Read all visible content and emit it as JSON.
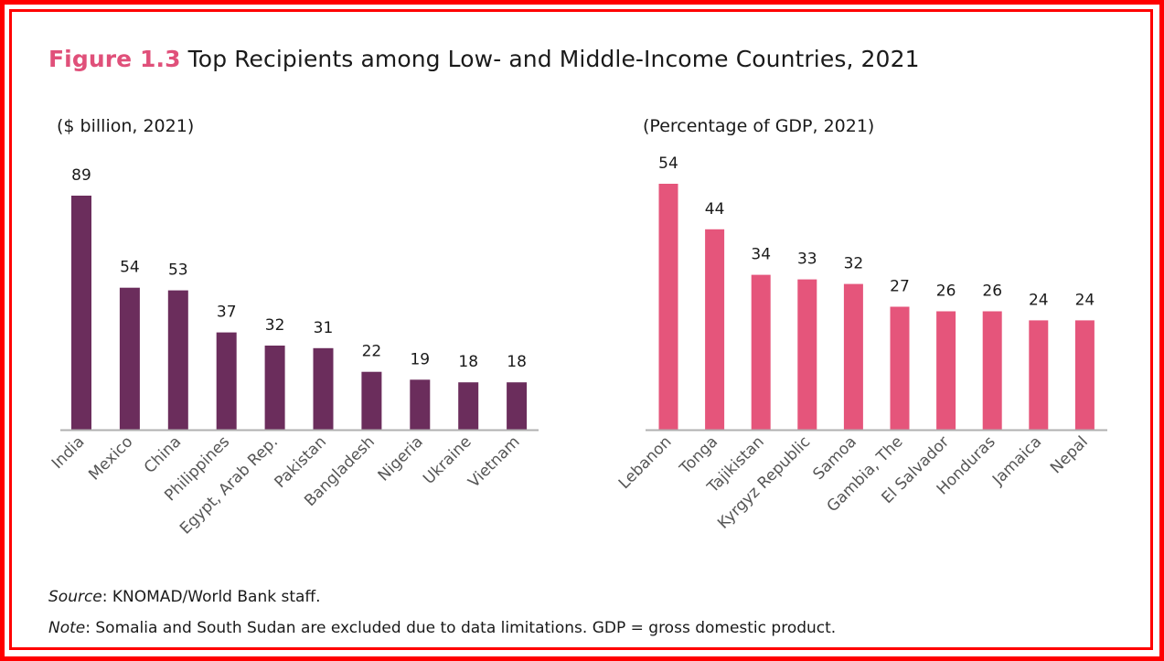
{
  "figure": {
    "label": "Figure 1.3",
    "title": "Top Recipients among Low- and Middle-Income Countries, 2021"
  },
  "chart_data": [
    {
      "type": "bar",
      "title": "($ billion, 2021)",
      "xlabel": "",
      "ylabel": "$ billion",
      "categories": [
        "India",
        "Mexico",
        "China",
        "Philippines",
        "Egypt, Arab Rep.",
        "Pakistan",
        "Bangladesh",
        "Nigeria",
        "Ukraine",
        "Vietnam"
      ],
      "values": [
        89,
        54,
        53,
        37,
        32,
        31,
        22,
        19,
        18,
        18
      ],
      "data_labels": [
        "89",
        "54",
        "53",
        "37",
        "32",
        "31",
        "22",
        "19",
        "18",
        "18"
      ],
      "ylim": [
        0,
        89
      ],
      "grid": false,
      "color": "#6b2d5c"
    },
    {
      "type": "bar",
      "title": "(Percentage of GDP, 2021)",
      "xlabel": "",
      "ylabel": "Percentage of GDP",
      "categories": [
        "Lebanon",
        "Tonga",
        "Tajikistan",
        "Kyrgyz Republic",
        "Samoa",
        "Gambia, The",
        "El Salvador",
        "Honduras",
        "Jamaica",
        "Nepal"
      ],
      "values": [
        54,
        44,
        34,
        33,
        32,
        27,
        26,
        26,
        24,
        24
      ],
      "data_labels": [
        "54",
        "44",
        "34",
        "33",
        "32",
        "27",
        "26",
        "26",
        "24",
        "24"
      ],
      "ylim": [
        0,
        54
      ],
      "grid": false,
      "color": "#e5557b"
    }
  ],
  "footer": {
    "source_label": "Source",
    "source_text": ": KNOMAD/World Bank staff.",
    "note_label": "Note",
    "note_text": ": Somalia and South Sudan are excluded due to data limitations. GDP = gross domestic product."
  },
  "colors": {
    "frame": "#ff0000",
    "title_accent": "#e0507a",
    "axis": "#b0b0b0",
    "text": "#1a1a1a"
  }
}
